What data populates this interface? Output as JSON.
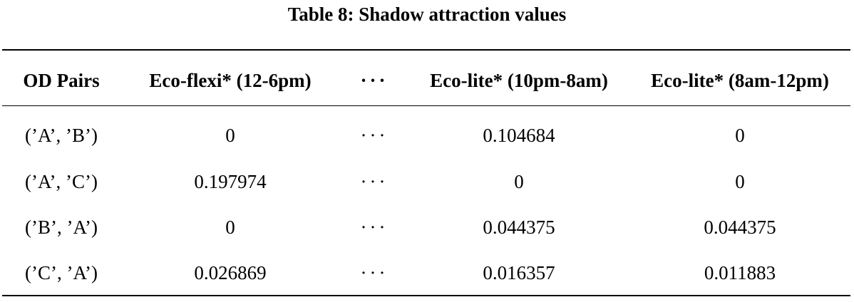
{
  "caption": "Table 8: Shadow attraction values",
  "table": {
    "headers": [
      "OD Pairs",
      "Eco-flexi* (12-6pm)",
      "···",
      "Eco-lite* (10pm-8am)",
      "Eco-lite* (8am-12pm)"
    ],
    "rows": [
      [
        "(’A’, ’B’)",
        "0",
        "···",
        "0.104684",
        "0"
      ],
      [
        "(’A’, ’C’)",
        "0.197974",
        "···",
        "0",
        "0"
      ],
      [
        "(’B’, ’A’)",
        "0",
        "···",
        "0.044375",
        "0.044375"
      ],
      [
        "(’C’, ’A’)",
        "0.026869",
        "···",
        "0.016357",
        "0.011883"
      ]
    ]
  }
}
